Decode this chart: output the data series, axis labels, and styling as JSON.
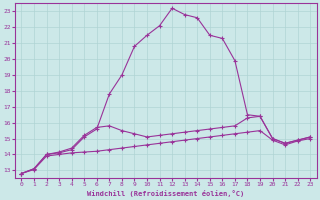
{
  "xlabel": "Windchill (Refroidissement éolien,°C)",
  "background_color": "#cce8e8",
  "grid_color": "#b0d4d4",
  "line_color": "#993399",
  "xlim": [
    -0.5,
    23.5
  ],
  "ylim": [
    12.5,
    23.5
  ],
  "yticks": [
    13,
    14,
    15,
    16,
    17,
    18,
    19,
    20,
    21,
    22,
    23
  ],
  "xticks": [
    0,
    1,
    2,
    3,
    4,
    5,
    6,
    7,
    8,
    9,
    10,
    11,
    12,
    13,
    14,
    15,
    16,
    17,
    18,
    19,
    20,
    21,
    22,
    23
  ],
  "series1_x": [
    0,
    1,
    2,
    3,
    4,
    5,
    6,
    7,
    8,
    9,
    10,
    11,
    12,
    13,
    14,
    15,
    16,
    17,
    18,
    19,
    20,
    21,
    22,
    23
  ],
  "series1_y": [
    12.8,
    13.1,
    14.0,
    14.1,
    14.3,
    15.1,
    15.6,
    17.8,
    19.0,
    20.8,
    21.5,
    22.1,
    23.2,
    22.8,
    22.6,
    21.5,
    21.3,
    19.9,
    16.5,
    16.4,
    15.0,
    14.7,
    14.9,
    15.1
  ],
  "series2_x": [
    0,
    1,
    2,
    3,
    4,
    5,
    6,
    7,
    8,
    9,
    10,
    11,
    12,
    13,
    14,
    15,
    16,
    17,
    18,
    19,
    20,
    21,
    22,
    23
  ],
  "series2_y": [
    12.8,
    13.1,
    14.0,
    14.15,
    14.4,
    15.2,
    15.7,
    15.8,
    15.5,
    15.3,
    15.1,
    15.2,
    15.3,
    15.4,
    15.5,
    15.6,
    15.7,
    15.8,
    16.3,
    16.4,
    15.0,
    14.7,
    14.9,
    15.1
  ],
  "series3_x": [
    0,
    1,
    2,
    3,
    4,
    5,
    6,
    7,
    8,
    9,
    10,
    11,
    12,
    13,
    14,
    15,
    16,
    17,
    18,
    19,
    20,
    21,
    22,
    23
  ],
  "series3_y": [
    12.8,
    13.05,
    13.9,
    14.0,
    14.1,
    14.15,
    14.2,
    14.3,
    14.4,
    14.5,
    14.6,
    14.7,
    14.8,
    14.9,
    15.0,
    15.1,
    15.2,
    15.3,
    15.4,
    15.5,
    14.9,
    14.6,
    14.85,
    15.0
  ]
}
